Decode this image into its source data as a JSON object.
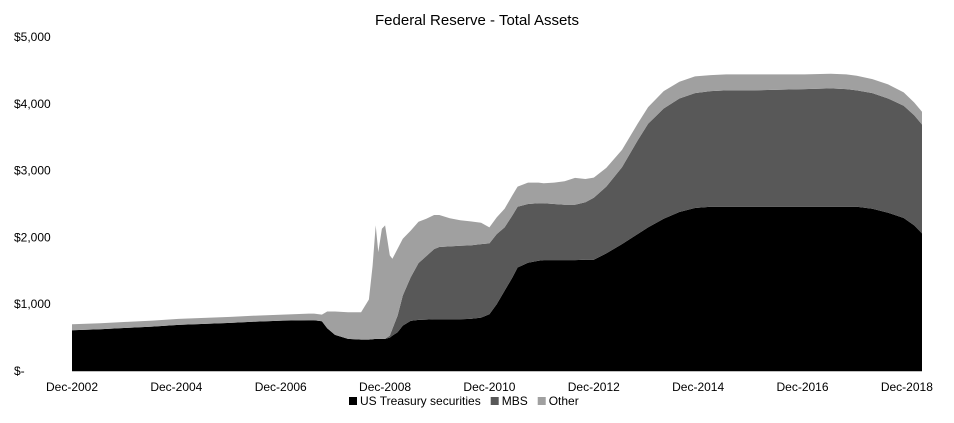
{
  "chart_data": {
    "type": "area",
    "stacked": true,
    "title": "Federal Reserve - Total Assets",
    "xlabel": "",
    "ylabel": "",
    "ylim": [
      0,
      5000
    ],
    "yticks": [
      0,
      1000,
      2000,
      3000,
      4000,
      5000
    ],
    "ytick_labels": [
      "$-",
      "$1,000",
      "$2,000",
      "$3,000",
      "$4,000",
      "$5,000"
    ],
    "xtick_labels": [
      "Dec-2002",
      "Dec-2004",
      "Dec-2006",
      "Dec-2008",
      "Dec-2010",
      "Dec-2012",
      "Dec-2014",
      "Dec-2016",
      "Dec-2018"
    ],
    "xtick_values": [
      2002.96,
      2004.96,
      2006.96,
      2008.96,
      2010.96,
      2012.96,
      2014.96,
      2016.96,
      2018.96
    ],
    "xlim": [
      2002.96,
      2019.25
    ],
    "grid": false,
    "legend": "bottom",
    "x": [
      2002.96,
      2003.5,
      2004.0,
      2004.5,
      2005.0,
      2005.5,
      2006.0,
      2006.5,
      2007.0,
      2007.5,
      2007.6,
      2007.75,
      2007.85,
      2008.0,
      2008.25,
      2008.5,
      2008.65,
      2008.72,
      2008.78,
      2008.83,
      2008.9,
      2008.96,
      2009.05,
      2009.1,
      2009.2,
      2009.3,
      2009.45,
      2009.6,
      2009.75,
      2009.9,
      2010.0,
      2010.2,
      2010.4,
      2010.6,
      2010.8,
      2010.96,
      2011.1,
      2011.25,
      2011.4,
      2011.5,
      2011.7,
      2011.9,
      2012.0,
      2012.2,
      2012.4,
      2012.6,
      2012.8,
      2012.96,
      2013.2,
      2013.5,
      2013.8,
      2014.0,
      2014.3,
      2014.6,
      2014.9,
      2015.2,
      2015.5,
      2015.8,
      2016.0,
      2016.5,
      2017.0,
      2017.5,
      2017.8,
      2018.0,
      2018.3,
      2018.6,
      2018.9,
      2019.1,
      2019.25
    ],
    "series": [
      {
        "name": "US Treasury securities",
        "color": "#000000",
        "values": [
          610,
          625,
          645,
          665,
          690,
          705,
          720,
          740,
          755,
          760,
          760,
          745,
          640,
          540,
          480,
          470,
          470,
          475,
          480,
          480,
          480,
          480,
          500,
          530,
          580,
          680,
          750,
          765,
          770,
          775,
          776,
          776,
          776,
          780,
          800,
          850,
          1000,
          1200,
          1400,
          1550,
          1620,
          1650,
          1660,
          1660,
          1660,
          1660,
          1665,
          1665,
          1760,
          1900,
          2050,
          2150,
          2280,
          2380,
          2440,
          2460,
          2460,
          2460,
          2460,
          2460,
          2460,
          2460,
          2460,
          2460,
          2430,
          2370,
          2290,
          2180,
          2060
        ]
      },
      {
        "name": "MBS",
        "color": "#585858",
        "values": [
          0,
          0,
          0,
          0,
          0,
          0,
          0,
          0,
          0,
          0,
          0,
          0,
          0,
          0,
          0,
          0,
          0,
          0,
          0,
          0,
          0,
          0,
          30,
          100,
          250,
          450,
          650,
          850,
          950,
          1050,
          1080,
          1090,
          1100,
          1100,
          1100,
          1060,
          1050,
          950,
          930,
          910,
          880,
          860,
          850,
          840,
          830,
          830,
          860,
          930,
          1000,
          1150,
          1400,
          1550,
          1650,
          1700,
          1720,
          1730,
          1740,
          1740,
          1740,
          1750,
          1760,
          1770,
          1760,
          1740,
          1730,
          1710,
          1680,
          1650,
          1630
        ]
      },
      {
        "name": "Other",
        "color": "#a0a0a0",
        "values": [
          90,
          90,
          90,
          90,
          90,
          90,
          90,
          90,
          90,
          100,
          100,
          100,
          250,
          350,
          400,
          410,
          600,
          1100,
          1700,
          1300,
          1650,
          1700,
          1200,
          1050,
          1000,
          850,
          700,
          620,
          560,
          510,
          480,
          420,
          380,
          360,
          320,
          240,
          250,
          280,
          300,
          300,
          320,
          310,
          300,
          320,
          350,
          400,
          350,
          300,
          280,
          260,
          250,
          250,
          260,
          250,
          250,
          240,
          240,
          240,
          240,
          230,
          220,
          220,
          220,
          220,
          210,
          210,
          200,
          190,
          190
        ]
      }
    ]
  }
}
